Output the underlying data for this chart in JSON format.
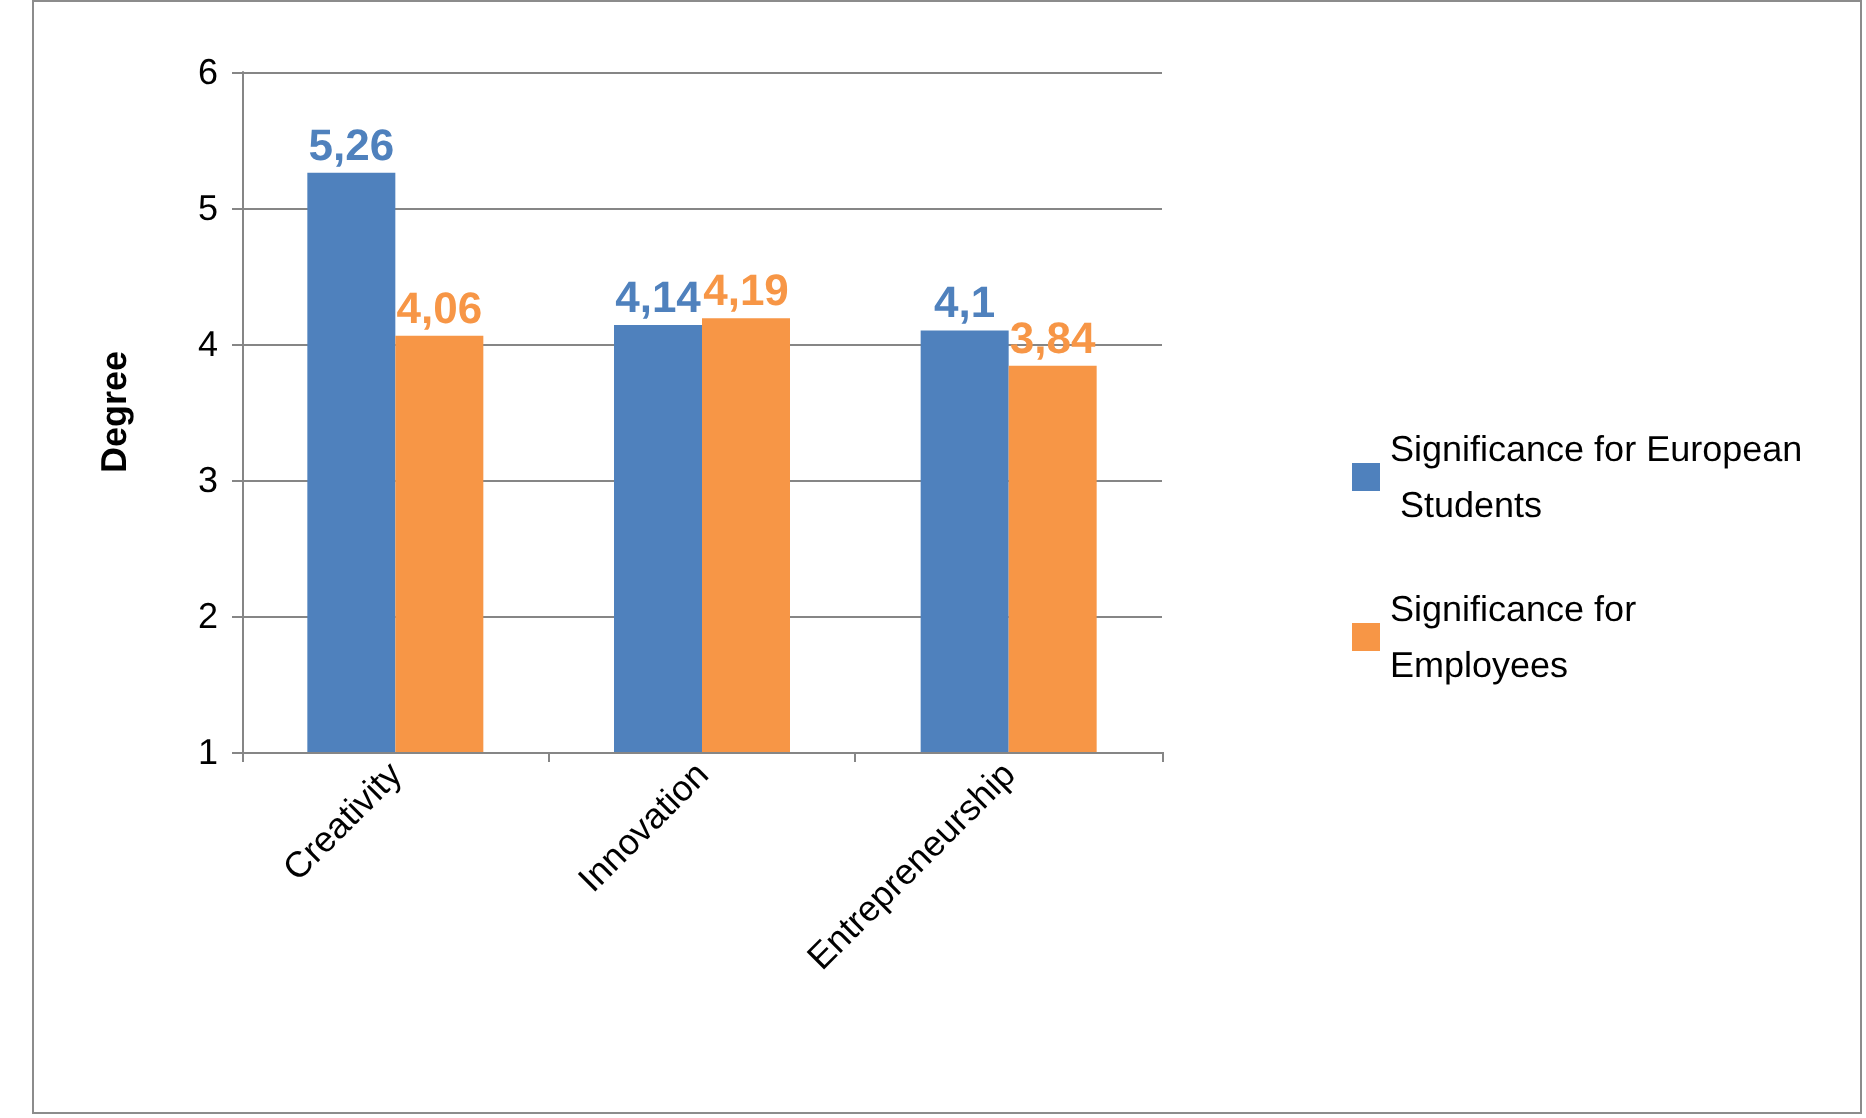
{
  "chart_data": {
    "type": "bar",
    "ylabel": "Degree",
    "categories": [
      "Creativity",
      "Innovation",
      "Entrepreneurship"
    ],
    "series": [
      {
        "name": "Significance for European Students",
        "color": "#4f81bd",
        "values": [
          5.26,
          4.14,
          4.1
        ],
        "value_labels": [
          "5,26",
          "4,14",
          "4,1"
        ]
      },
      {
        "name": "Significance for Employees",
        "color": "#f79646",
        "values": [
          4.06,
          4.19,
          3.84
        ],
        "value_labels": [
          "4,06",
          "4,19",
          "3,84"
        ]
      }
    ],
    "ylim": [
      1,
      6
    ],
    "yticks": [
      1,
      2,
      3,
      4,
      5,
      6
    ],
    "grid": "y",
    "legend": "right"
  }
}
